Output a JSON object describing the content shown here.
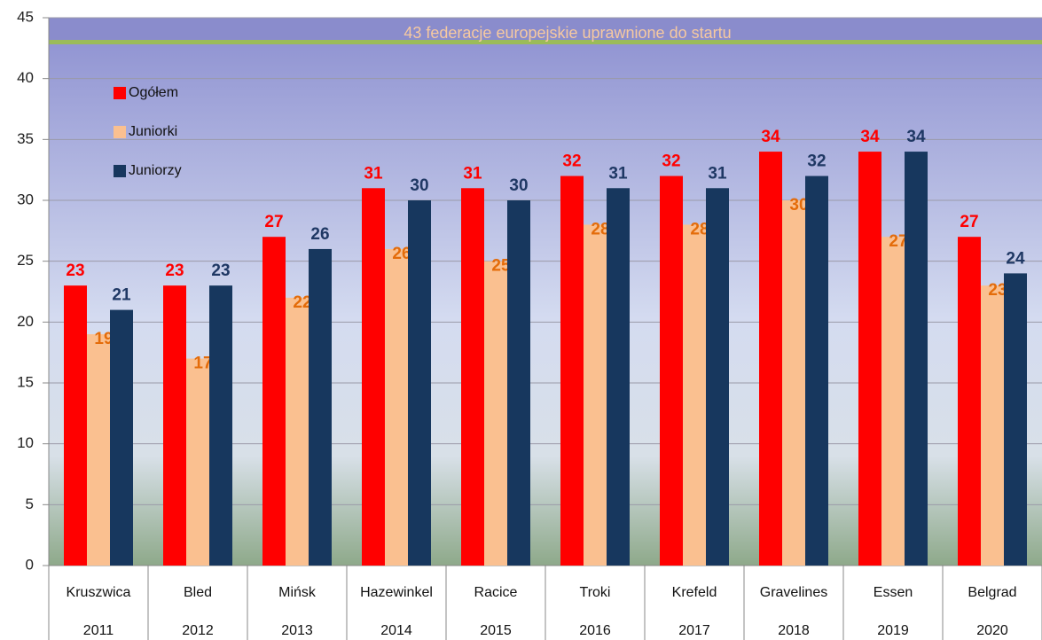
{
  "chart_data": {
    "type": "bar",
    "categories": [
      "Kruszwica",
      "Bled",
      "Mińsk",
      "Hazewinkel",
      "Racice",
      "Troki",
      "Krefeld",
      "Gravelines",
      "Essen",
      "Belgrad"
    ],
    "years": [
      "2011",
      "2012",
      "2013",
      "2014",
      "2015",
      "2016",
      "2017",
      "2018",
      "2019",
      "2020"
    ],
    "series": [
      {
        "name": "Ogółem",
        "color": "#ff0000",
        "label_color": "#ff0000",
        "values": [
          23,
          23,
          27,
          31,
          31,
          32,
          32,
          34,
          34,
          27
        ]
      },
      {
        "name": "Juniorki",
        "color": "#fac090",
        "label_color": "#e46c0a",
        "values": [
          19,
          17,
          22,
          26,
          25,
          28,
          28,
          30,
          27,
          23
        ]
      },
      {
        "name": "Juniorzy",
        "color": "#17375e",
        "label_color": "#1f3864",
        "values": [
          21,
          23,
          26,
          30,
          30,
          31,
          31,
          32,
          34,
          24
        ]
      }
    ],
    "annotation": {
      "text": "43 federacje europejskie uprawnione do startu",
      "value": 43
    },
    "ylim": [
      0,
      45
    ],
    "yticks": [
      0,
      5,
      10,
      15,
      20,
      25,
      30,
      35,
      40,
      45
    ],
    "grid": true,
    "legend": "top-left"
  }
}
